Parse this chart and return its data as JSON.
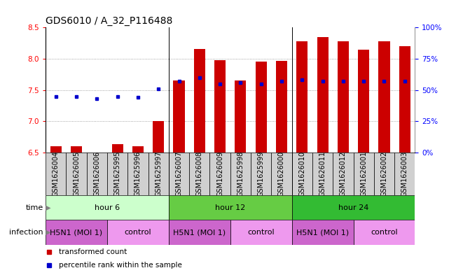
{
  "title": "GDS6010 / A_32_P116488",
  "samples": [
    "GSM1626004",
    "GSM1626005",
    "GSM1626006",
    "GSM1625995",
    "GSM1625996",
    "GSM1625997",
    "GSM1626007",
    "GSM1626008",
    "GSM1626009",
    "GSM1625998",
    "GSM1625999",
    "GSM1626000",
    "GSM1626010",
    "GSM1626011",
    "GSM1626012",
    "GSM1626001",
    "GSM1626002",
    "GSM1626003"
  ],
  "transformed_count": [
    6.6,
    6.6,
    6.5,
    6.63,
    6.6,
    7.0,
    7.65,
    8.16,
    7.98,
    7.65,
    7.96,
    7.97,
    8.28,
    8.35,
    8.28,
    8.14,
    8.28,
    8.2
  ],
  "percentile_rank": [
    45,
    45,
    43,
    45,
    44,
    51,
    57,
    60,
    55,
    56,
    55,
    57,
    58,
    57,
    57,
    57,
    57,
    57
  ],
  "ylim_left": [
    6.5,
    8.5
  ],
  "ylim_right": [
    0,
    100
  ],
  "yticks_left": [
    6.5,
    7.0,
    7.5,
    8.0,
    8.5
  ],
  "yticks_right": [
    0,
    25,
    50,
    75,
    100
  ],
  "ytick_labels_right": [
    "0%",
    "25%",
    "50%",
    "75%",
    "100%"
  ],
  "bar_color": "#cc0000",
  "dot_color": "#0000cc",
  "bar_bottom": 6.5,
  "time_groups": [
    {
      "label": "hour 6",
      "start": 0,
      "end": 5,
      "color": "#ccffcc"
    },
    {
      "label": "hour 12",
      "start": 6,
      "end": 11,
      "color": "#66cc44"
    },
    {
      "label": "hour 24",
      "start": 12,
      "end": 17,
      "color": "#33bb33"
    }
  ],
  "infection_groups": [
    {
      "label": "H5N1 (MOI 1)",
      "start": 0,
      "end": 2,
      "color": "#cc66cc"
    },
    {
      "label": "control",
      "start": 3,
      "end": 5,
      "color": "#ee99ee"
    },
    {
      "label": "H5N1 (MOI 1)",
      "start": 6,
      "end": 8,
      "color": "#cc66cc"
    },
    {
      "label": "control",
      "start": 9,
      "end": 11,
      "color": "#ee99ee"
    },
    {
      "label": "H5N1 (MOI 1)",
      "start": 12,
      "end": 14,
      "color": "#cc66cc"
    },
    {
      "label": "control",
      "start": 15,
      "end": 17,
      "color": "#ee99ee"
    }
  ],
  "legend_items": [
    {
      "label": "transformed count",
      "color": "#cc0000"
    },
    {
      "label": "percentile rank within the sample",
      "color": "#0000cc"
    }
  ],
  "grid_yticks": [
    7.0,
    7.5,
    8.0
  ],
  "grid_color": "#888888",
  "background_color": "#ffffff",
  "title_fontsize": 10,
  "tick_label_fontsize": 7.5,
  "bar_width": 0.55,
  "sample_box_color": "#d0d0d0",
  "group_dividers": [
    5.5,
    11.5
  ]
}
